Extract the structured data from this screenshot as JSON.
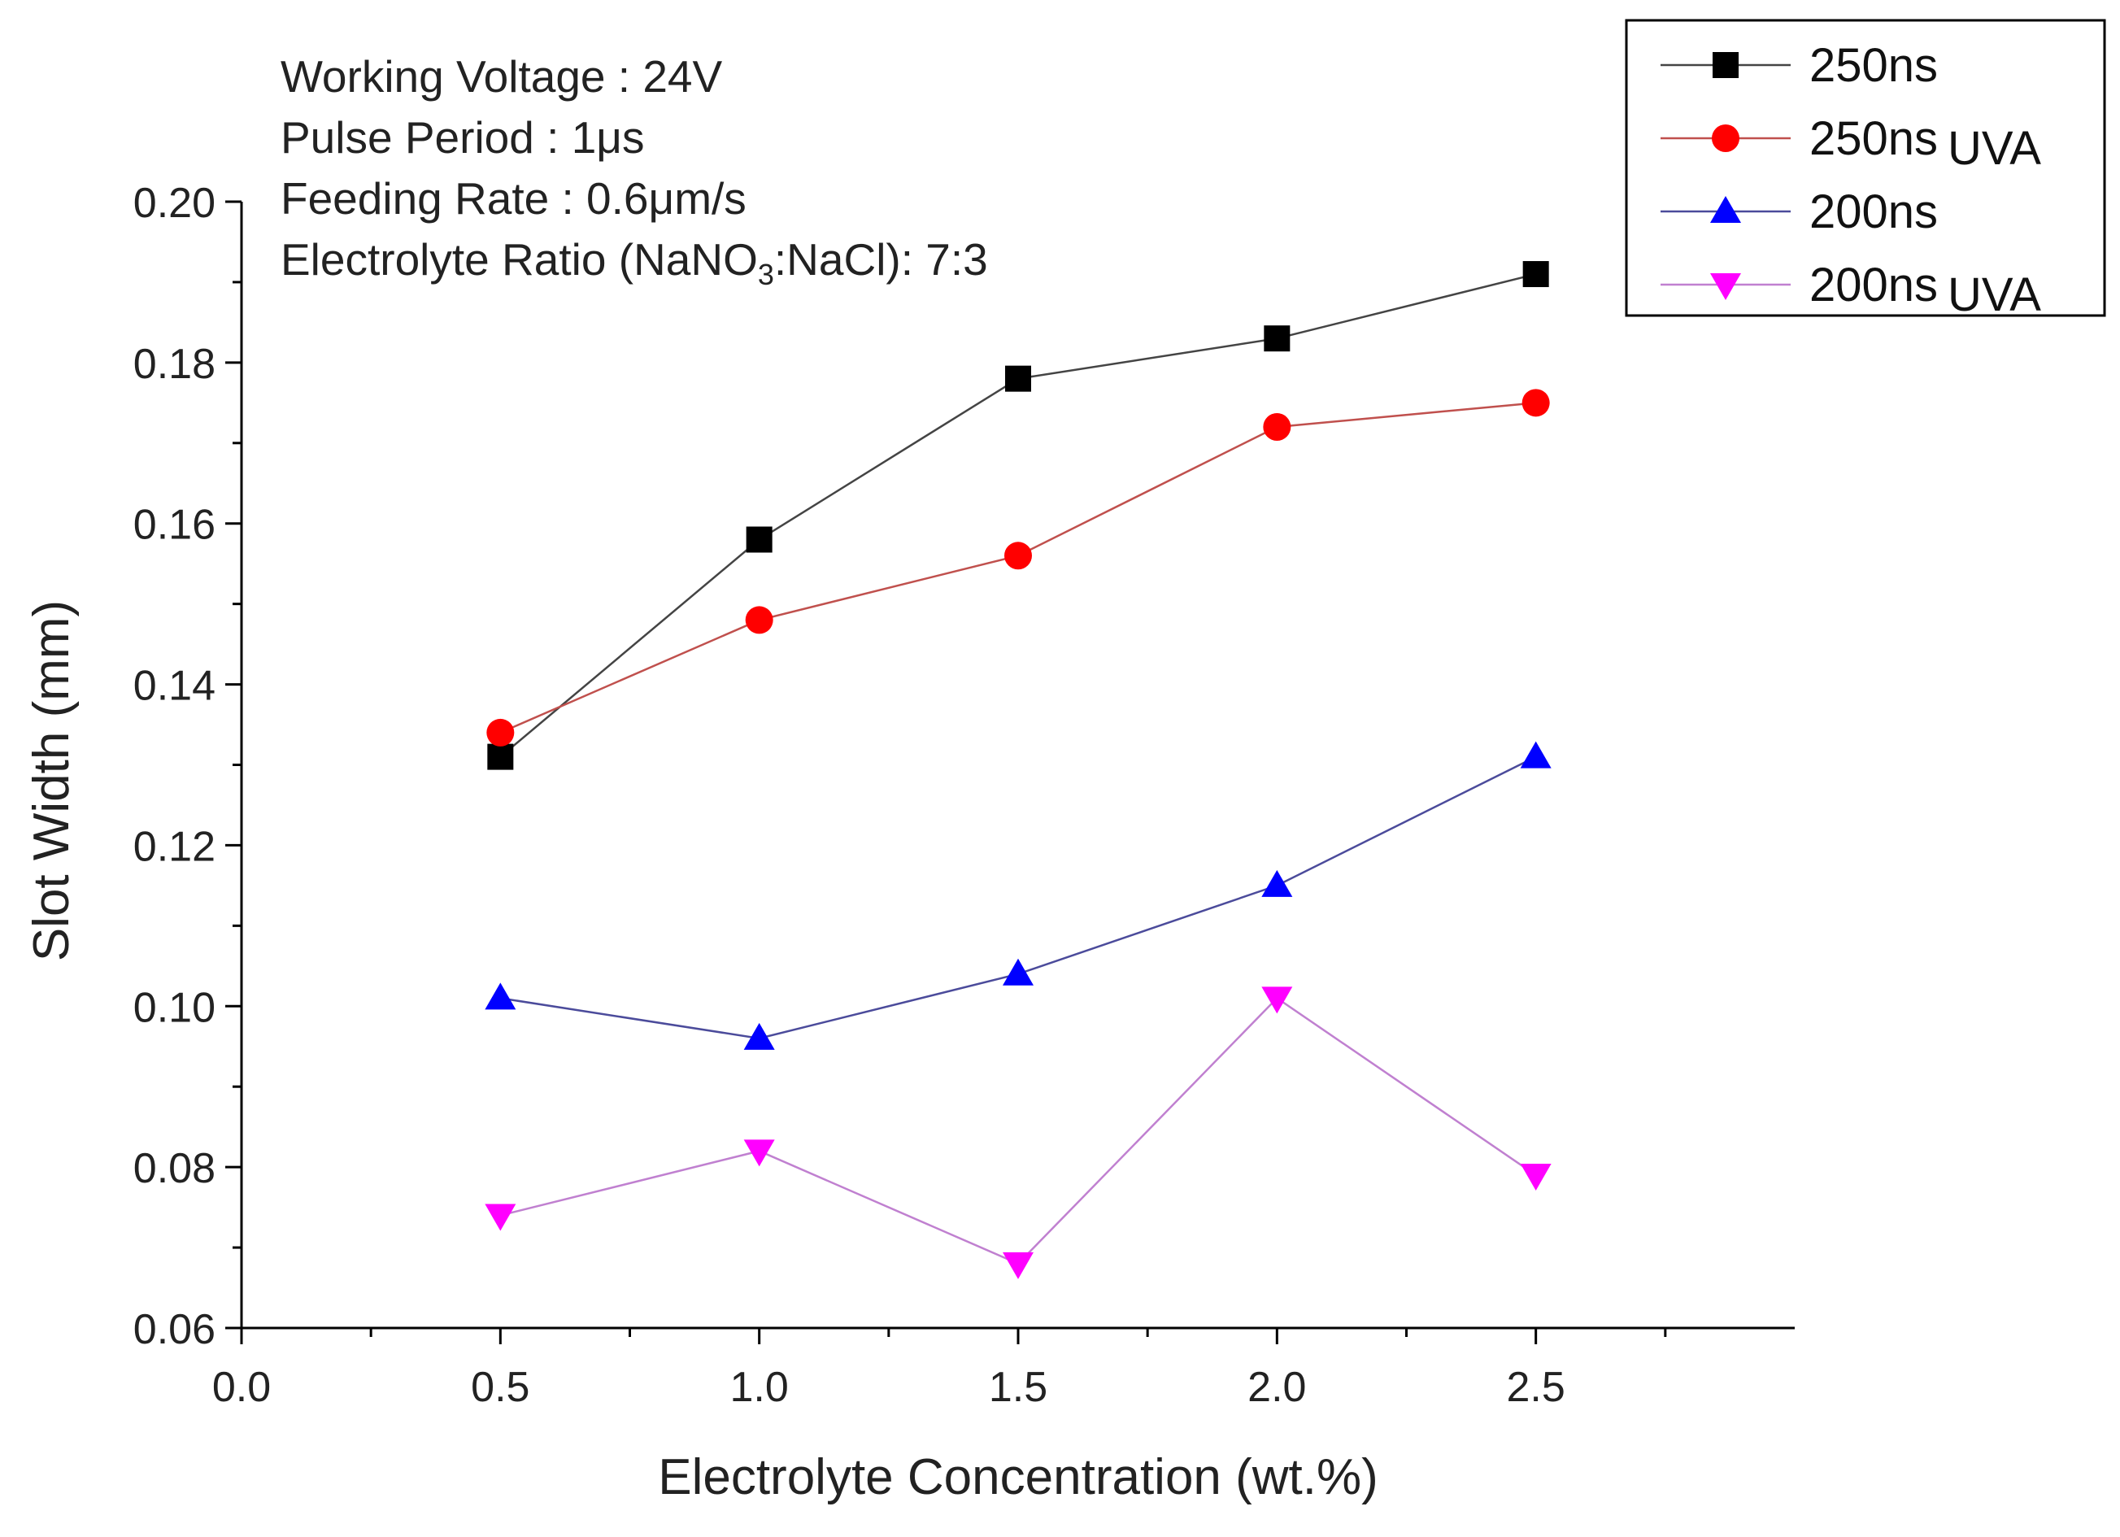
{
  "chart_data": {
    "type": "line",
    "xlabel": "Electrolyte Concentration (wt.%)",
    "ylabel": "Slot Width (mm)",
    "xlim": [
      0.0,
      3.0
    ],
    "ylim": [
      0.06,
      0.2
    ],
    "x_ticks": [
      "0.0",
      "0.5",
      "1.0",
      "1.5",
      "2.0",
      "2.5"
    ],
    "y_ticks": [
      "0.06",
      "0.08",
      "0.10",
      "0.12",
      "0.14",
      "0.16",
      "0.18",
      "0.20"
    ],
    "grid": false,
    "legend_position": "top-right",
    "annotations": [
      "Working Voltage : 24V",
      "Pulse Period : 1μs",
      "Feeding Rate : 0.6μm/s",
      "Electrolyte Ratio (NaNO₃:NaCl): 7:3"
    ],
    "x": [
      0.5,
      1.0,
      1.5,
      2.0,
      2.5
    ],
    "series": [
      {
        "name": "250ns",
        "marker": "square",
        "color": "#000000",
        "line_color": "#444444",
        "values": [
          0.131,
          0.158,
          0.178,
          0.183,
          0.191
        ]
      },
      {
        "name": "250ns UVA",
        "marker": "circle",
        "color": "#ff0000",
        "line_color": "#c0504d",
        "values": [
          0.134,
          0.148,
          0.156,
          0.172,
          0.175
        ]
      },
      {
        "name": "200ns",
        "marker": "triangle-up",
        "color": "#0000ff",
        "line_color": "#4b4b9b",
        "values": [
          0.101,
          0.096,
          0.104,
          0.115,
          0.131
        ]
      },
      {
        "name": "200ns UVA",
        "marker": "triangle-down",
        "color": "#ff00ff",
        "line_color": "#c080d0",
        "values": [
          0.074,
          0.082,
          0.068,
          0.101,
          0.079
        ]
      }
    ]
  }
}
